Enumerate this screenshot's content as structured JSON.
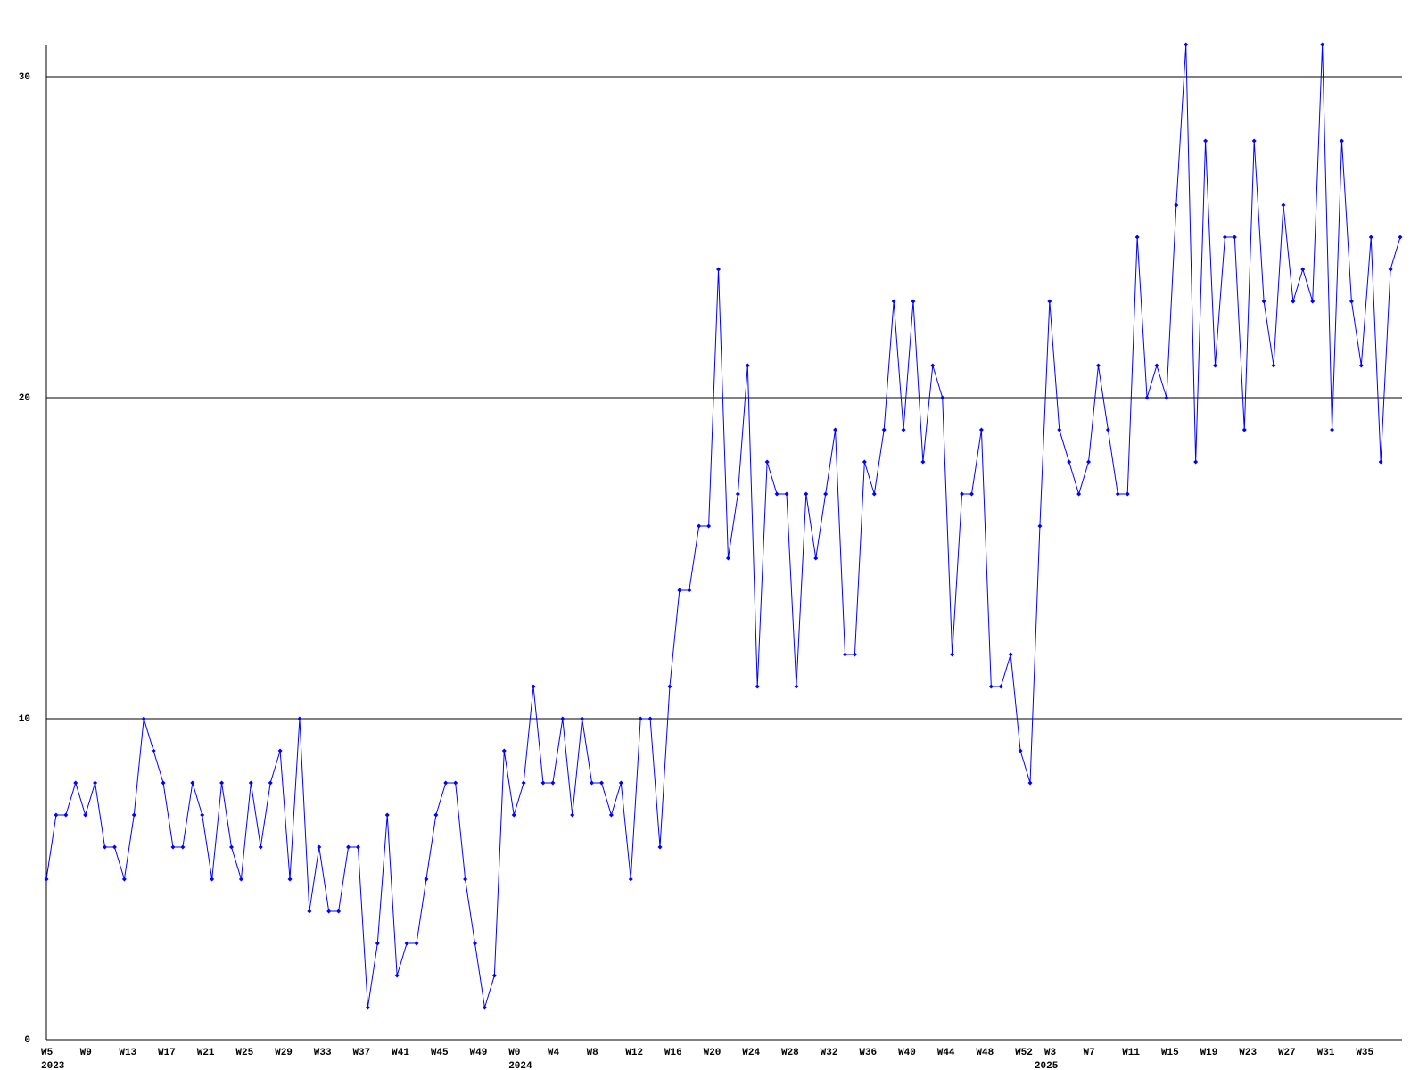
{
  "chart_data": {
    "type": "line",
    "categories": [
      "W5",
      null,
      null,
      null,
      "W9",
      null,
      null,
      null,
      "W13",
      null,
      null,
      null,
      "W17",
      null,
      null,
      null,
      "W21",
      null,
      null,
      null,
      "W25",
      null,
      null,
      null,
      "W29",
      null,
      null,
      null,
      "W33",
      null,
      null,
      null,
      "W37",
      null,
      null,
      null,
      "W41",
      null,
      null,
      null,
      "W45",
      null,
      null,
      null,
      "W49",
      null,
      null,
      null,
      "W0",
      null,
      null,
      null,
      "W4",
      null,
      null,
      null,
      "W8",
      null,
      null,
      null,
      "W12",
      null,
      null,
      null,
      "W16",
      null,
      null,
      null,
      "W20",
      null,
      null,
      null,
      "W24",
      null,
      null,
      null,
      "W28",
      null,
      null,
      null,
      "W32",
      null,
      null,
      null,
      "W36",
      null,
      null,
      null,
      "W40",
      null,
      null,
      null,
      "W44",
      null,
      null,
      null,
      "W48",
      null,
      null,
      null,
      "W52",
      null,
      null,
      "W3",
      null,
      null,
      null,
      "W7",
      null,
      null,
      null,
      "W11",
      null,
      null,
      null,
      "W15",
      null,
      null,
      null,
      "W19",
      null,
      null,
      null,
      "W23",
      null,
      null,
      null,
      "W27",
      null,
      null,
      null,
      "W31",
      null,
      null,
      null,
      "W35",
      null,
      null,
      null,
      null
    ],
    "year_labels": [
      "2023",
      null,
      null,
      null,
      null,
      null,
      null,
      null,
      null,
      null,
      null,
      null,
      null,
      null,
      null,
      null,
      null,
      null,
      null,
      null,
      null,
      null,
      null,
      null,
      null,
      null,
      null,
      null,
      null,
      null,
      null,
      null,
      null,
      null,
      null,
      null,
      null,
      null,
      null,
      null,
      null,
      null,
      null,
      null,
      null,
      null,
      null,
      null,
      "2024",
      null,
      null,
      null,
      null,
      null,
      null,
      null,
      null,
      null,
      null,
      null,
      null,
      null,
      null,
      null,
      null,
      null,
      null,
      null,
      null,
      null,
      null,
      null,
      null,
      null,
      null,
      null,
      null,
      null,
      null,
      null,
      null,
      null,
      null,
      null,
      null,
      null,
      null,
      null,
      null,
      null,
      null,
      null,
      null,
      null,
      null,
      null,
      null,
      null,
      null,
      null,
      null,
      null,
      "2025",
      null,
      null,
      null,
      null,
      null,
      null,
      null,
      null,
      null,
      null,
      null,
      null,
      null,
      null,
      null,
      null,
      null,
      null,
      null,
      null,
      null,
      null,
      null,
      null,
      null,
      null,
      null,
      null,
      null,
      null,
      null,
      null,
      null,
      null,
      null,
      null,
      null
    ],
    "series": [
      {
        "color": "#0000ff",
        "values": [
          5,
          7,
          7,
          8,
          7,
          8,
          6,
          6,
          5,
          7,
          10,
          9,
          8,
          6,
          6,
          8,
          7,
          5,
          8,
          6,
          5,
          8,
          6,
          8,
          9,
          5,
          10,
          4,
          6,
          4,
          4,
          6,
          6,
          1,
          3,
          7,
          2,
          3,
          3,
          5,
          7,
          8,
          8,
          5,
          3,
          1,
          2,
          9,
          7,
          8,
          11,
          8,
          8,
          10,
          7,
          10,
          8,
          8,
          7,
          8,
          5,
          10,
          10,
          6,
          11,
          14,
          14,
          16,
          16,
          24,
          15,
          17,
          21,
          11,
          18,
          17,
          17,
          11,
          17,
          15,
          17,
          19,
          12,
          12,
          18,
          17,
          19,
          23,
          19,
          23,
          18,
          21,
          20,
          12,
          17,
          17,
          19,
          11,
          11,
          12,
          9,
          8,
          16,
          23,
          19,
          18,
          17,
          18,
          21,
          19,
          17,
          17,
          25,
          20,
          21,
          20,
          26,
          31,
          18,
          28,
          21,
          25,
          25,
          19,
          28,
          23,
          21,
          26,
          23,
          24,
          23,
          31,
          19,
          28,
          23,
          21,
          25,
          18,
          24,
          25
        ]
      }
    ],
    "ylim": [
      0,
      31
    ],
    "yticks": [
      0,
      10,
      20,
      30
    ],
    "grid": true
  }
}
